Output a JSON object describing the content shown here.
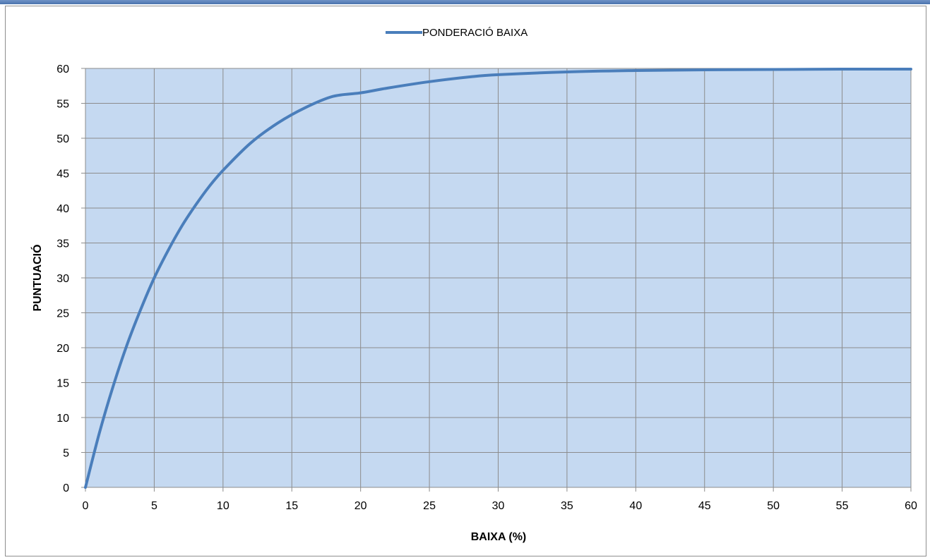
{
  "colors": {
    "plot_background": "#c5d9f1",
    "series_line": "#4a7ebb",
    "gridline": "#8c8c8c",
    "frame_bar": "#4a73ad"
  },
  "chart_data": {
    "type": "line",
    "xlabel": "BAIXA (%)",
    "ylabel": "PUNTUACIÓ",
    "xlim": [
      0,
      60
    ],
    "ylim": [
      0,
      60
    ],
    "xticks": [
      0,
      5,
      10,
      15,
      20,
      25,
      30,
      35,
      40,
      45,
      50,
      55,
      60
    ],
    "yticks": [
      0,
      5,
      10,
      15,
      20,
      25,
      30,
      35,
      40,
      45,
      50,
      55,
      60
    ],
    "grid": true,
    "legend_position": "top-center",
    "series": [
      {
        "name": "PONDERACIÓ BAIXA",
        "x": [
          0,
          1,
          2,
          3,
          4,
          5,
          6,
          7,
          8,
          9,
          10,
          12,
          14,
          16,
          18,
          20,
          22,
          25,
          28,
          30,
          35,
          40,
          45,
          50,
          55,
          60
        ],
        "values": [
          0,
          7.7,
          14.4,
          20.3,
          25.4,
          30.0,
          33.9,
          37.4,
          40.4,
          43.1,
          45.4,
          49.3,
          52.2,
          54.4,
          56.0,
          56.5,
          57.2,
          58.1,
          58.8,
          59.1,
          59.5,
          59.7,
          59.8,
          59.85,
          59.9,
          59.9
        ]
      }
    ]
  }
}
